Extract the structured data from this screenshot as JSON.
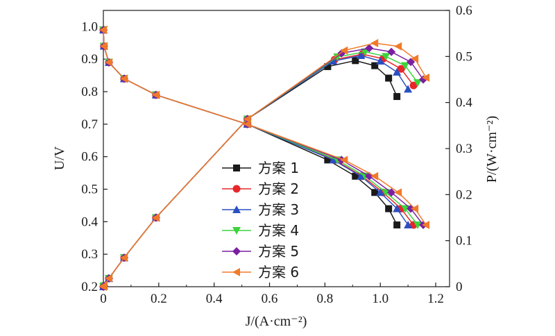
{
  "chart_data": {
    "type": "line",
    "x_axis": {
      "label": "J/(A·cm⁻²)",
      "range": [
        0,
        1.25
      ],
      "ticks": [
        0,
        0.2,
        0.4,
        0.6,
        0.8,
        1.0,
        1.2
      ],
      "tick_labels": [
        "0",
        "0.2",
        "0.4",
        "0.6",
        "0.8",
        "1.0",
        "1.2"
      ]
    },
    "y_axis_left": {
      "label": "U/V",
      "range": [
        0.2,
        1.05
      ],
      "ticks": [
        0.2,
        0.3,
        0.4,
        0.5,
        0.6,
        0.7,
        0.8,
        0.9,
        1.0
      ],
      "tick_labels": [
        "0.2",
        "0.3",
        "0.4",
        "0.5",
        "0.6",
        "0.7",
        "0.8",
        "0.9",
        "1.0"
      ]
    },
    "y_axis_right": {
      "label": "P/(W·cm⁻²)",
      "range": [
        0,
        0.6
      ],
      "ticks": [
        0,
        0.1,
        0.2,
        0.3,
        0.4,
        0.5,
        0.6
      ],
      "tick_labels": [
        "0",
        "0.1",
        "0.2",
        "0.3",
        "0.4",
        "0.5",
        "0.6"
      ]
    },
    "grid": false,
    "legend_position": "center",
    "series": [
      {
        "name": "方案 1",
        "color": "#1a1a1a",
        "marker": "square",
        "x": [
          0,
          0.002,
          0.02,
          0.075,
          0.19,
          0.52,
          0.81,
          0.91,
          0.98,
          1.03,
          1.06
        ],
        "voltage": [
          0.99,
          0.94,
          0.89,
          0.84,
          0.79,
          0.7,
          0.59,
          0.54,
          0.49,
          0.44,
          0.39
        ],
        "power": [
          0,
          0.002,
          0.018,
          0.063,
          0.15,
          0.364,
          0.478,
          0.491,
          0.48,
          0.453,
          0.413
        ]
      },
      {
        "name": "方案 2",
        "color": "#e8262a",
        "marker": "circle",
        "x": [
          0,
          0.002,
          0.02,
          0.075,
          0.19,
          0.52,
          0.835,
          0.935,
          1.01,
          1.075,
          1.12
        ],
        "voltage": [
          0.99,
          0.94,
          0.89,
          0.84,
          0.79,
          0.7,
          0.59,
          0.54,
          0.49,
          0.44,
          0.39
        ],
        "power": [
          0,
          0.002,
          0.018,
          0.063,
          0.15,
          0.364,
          0.493,
          0.505,
          0.495,
          0.473,
          0.437
        ]
      },
      {
        "name": "方案 3",
        "color": "#2a4fc1",
        "marker": "triangle-up",
        "x": [
          0,
          0.002,
          0.02,
          0.075,
          0.19,
          0.52,
          0.83,
          0.93,
          1.0,
          1.06,
          1.1
        ],
        "voltage": [
          0.99,
          0.94,
          0.89,
          0.84,
          0.79,
          0.7,
          0.59,
          0.54,
          0.49,
          0.44,
          0.39
        ],
        "power": [
          0,
          0.002,
          0.018,
          0.063,
          0.15,
          0.364,
          0.49,
          0.502,
          0.49,
          0.466,
          0.429
        ]
      },
      {
        "name": "方案 4",
        "color": "#3cd33c",
        "marker": "triangle-down",
        "x": [
          0,
          0.002,
          0.02,
          0.075,
          0.19,
          0.52,
          0.845,
          0.945,
          1.02,
          1.09,
          1.135
        ],
        "voltage": [
          0.99,
          0.94,
          0.89,
          0.84,
          0.79,
          0.7,
          0.59,
          0.54,
          0.49,
          0.44,
          0.39
        ],
        "power": [
          0,
          0.002,
          0.018,
          0.063,
          0.15,
          0.364,
          0.499,
          0.51,
          0.5,
          0.48,
          0.443
        ]
      },
      {
        "name": "方案 5",
        "color": "#7a1fa2",
        "marker": "diamond",
        "x": [
          0,
          0.002,
          0.02,
          0.075,
          0.19,
          0.52,
          0.86,
          0.96,
          1.04,
          1.11,
          1.155
        ],
        "voltage": [
          0.99,
          0.94,
          0.89,
          0.84,
          0.79,
          0.7,
          0.59,
          0.54,
          0.49,
          0.44,
          0.39
        ],
        "power": [
          0,
          0.002,
          0.018,
          0.063,
          0.15,
          0.364,
          0.507,
          0.518,
          0.51,
          0.488,
          0.45
        ]
      },
      {
        "name": "方案 6",
        "color": "#f07a2a",
        "marker": "triangle-left",
        "x": [
          0,
          0.002,
          0.02,
          0.075,
          0.19,
          0.52,
          0.87,
          0.98,
          1.065,
          1.125,
          1.165
        ],
        "voltage": [
          0.99,
          0.94,
          0.89,
          0.84,
          0.79,
          0.7,
          0.59,
          0.54,
          0.49,
          0.44,
          0.39
        ],
        "power": [
          0,
          0.002,
          0.018,
          0.063,
          0.15,
          0.364,
          0.513,
          0.529,
          0.522,
          0.495,
          0.454
        ]
      }
    ]
  }
}
